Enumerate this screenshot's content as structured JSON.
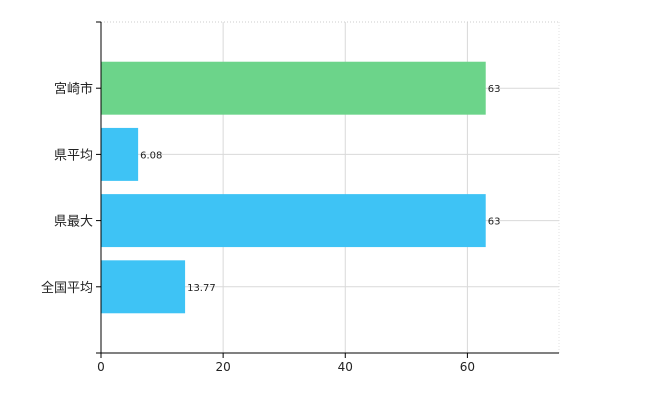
{
  "chart_data": {
    "type": "bar",
    "orientation": "horizontal",
    "categories": [
      "宮崎市",
      "県平均",
      "県最大",
      "全国平均"
    ],
    "values": [
      63,
      6.08,
      63,
      13.77
    ],
    "value_labels": [
      "63",
      "6.08",
      "63",
      "13.77"
    ],
    "bar_colors": [
      "#6cd48a",
      "#3ec3f5",
      "#3ec3f5",
      "#3ec3f5"
    ],
    "title": "",
    "xlabel": "",
    "ylabel": "",
    "xlim": [
      0,
      75
    ],
    "xticks": [
      0,
      20,
      40,
      60
    ],
    "xtick_labels": [
      "0",
      "20",
      "40",
      "60"
    ],
    "grid": true,
    "legend": "none"
  }
}
